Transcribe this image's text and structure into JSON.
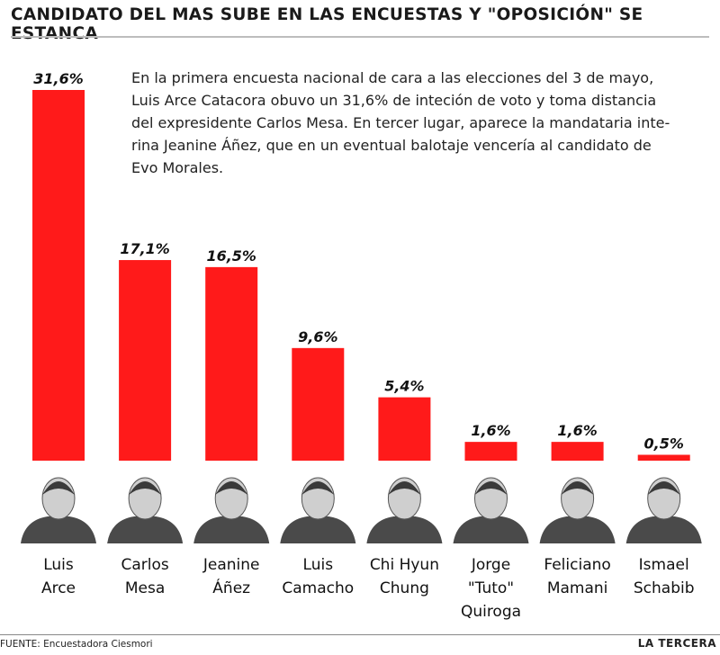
{
  "header": {
    "title": "CANDIDATO DEL MAS SUBE EN LAS ENCUESTAS Y \"OPOSICIÓN\" SE ESTANCA"
  },
  "description_lines": [
    "En la primera encuesta nacional de cara a las elecciones del 3 de mayo,",
    "Luis Arce Catacora obuvo un 31,6%  de inteción de voto y toma distancia",
    "del expresidente Carlos Mesa. En tercer lugar, aparece la mandataria inte-",
    "rina Jeanine Áñez, que en un eventual balotaje vencería al candidato de",
    "Evo Morales."
  ],
  "chart_data": {
    "type": "bar",
    "title": "CANDIDATO DEL MAS SUBE EN LAS ENCUESTAS Y \"OPOSICIÓN\" SE ESTANCA",
    "categories": [
      [
        "Luis",
        "Arce"
      ],
      [
        "Carlos",
        "Mesa"
      ],
      [
        "Jeanine",
        "Áñez"
      ],
      [
        "Luis",
        "Camacho"
      ],
      [
        "Chi Hyun",
        "Chung"
      ],
      [
        "Jorge",
        "\"Tuto\"",
        "Quiroga"
      ],
      [
        "Feliciano",
        "Mamani"
      ],
      [
        "Ismael",
        "Schabib"
      ]
    ],
    "values": [
      31.6,
      17.1,
      16.5,
      9.6,
      5.4,
      1.6,
      1.6,
      0.5
    ],
    "value_labels": [
      "31,6%",
      "17,1%",
      "16,5%",
      "9,6%",
      "5,4%",
      "1,6%",
      "1,6%",
      "0,5%"
    ],
    "ylim": [
      0,
      31.6
    ],
    "xlabel": "",
    "ylabel": "",
    "grid": false,
    "bar_color": "#ff1a1a"
  },
  "footer": {
    "source": "FUENTE: Encuestadora Ciesmori",
    "brand": "LA TERCERA"
  }
}
